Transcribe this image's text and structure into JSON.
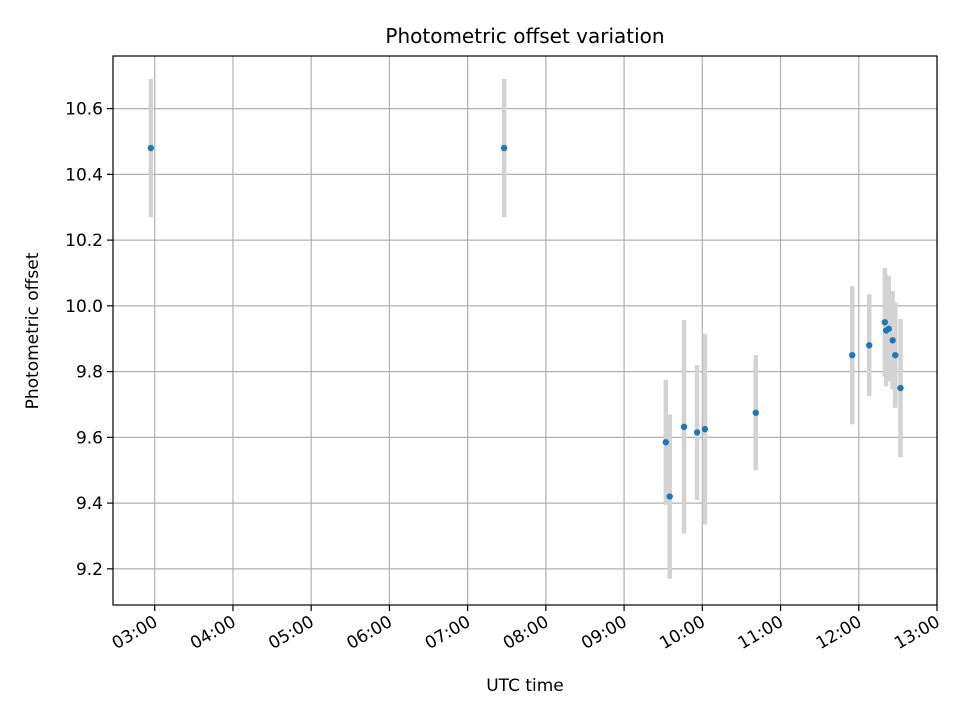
{
  "chart_data": {
    "type": "scatter",
    "title": "Photometric offset variation",
    "xlabel": "UTC time",
    "ylabel": "Photometric offset",
    "x_tick_labels": [
      "03:00",
      "04:00",
      "05:00",
      "06:00",
      "07:00",
      "08:00",
      "09:00",
      "10:00",
      "11:00",
      "12:00",
      "13:00"
    ],
    "y_tick_labels": [
      "9.2",
      "9.4",
      "9.6",
      "9.8",
      "10.0",
      "10.2",
      "10.4",
      "10.6"
    ],
    "xlim": [
      "02:28",
      "13:00"
    ],
    "ylim": [
      9.09,
      10.76
    ],
    "grid": true,
    "marker_color": "#1f77b4",
    "errorbar_color": "#d3d3d3",
    "points": [
      {
        "x": "02:57",
        "y": 10.48,
        "err": 0.21
      },
      {
        "x": "07:28",
        "y": 10.48,
        "err": 0.21
      },
      {
        "x": "09:32",
        "y": 9.585,
        "err": 0.19
      },
      {
        "x": "09:35",
        "y": 9.42,
        "err": 0.25
      },
      {
        "x": "09:46",
        "y": 9.632,
        "err": 0.325
      },
      {
        "x": "09:56",
        "y": 9.615,
        "err": 0.205
      },
      {
        "x": "10:02",
        "y": 9.625,
        "err": 0.29
      },
      {
        "x": "10:41",
        "y": 9.675,
        "err": 0.175
      },
      {
        "x": "11:55",
        "y": 9.85,
        "err": 0.21
      },
      {
        "x": "12:08",
        "y": 9.88,
        "err": 0.155
      },
      {
        "x": "12:20",
        "y": 9.95,
        "err": 0.165
      },
      {
        "x": "12:21",
        "y": 9.925,
        "err": 0.17
      },
      {
        "x": "12:23",
        "y": 9.93,
        "err": 0.16
      },
      {
        "x": "12:26",
        "y": 9.895,
        "err": 0.15
      },
      {
        "x": "12:28",
        "y": 9.85,
        "err": 0.16
      },
      {
        "x": "12:32",
        "y": 9.75,
        "err": 0.21
      }
    ]
  }
}
